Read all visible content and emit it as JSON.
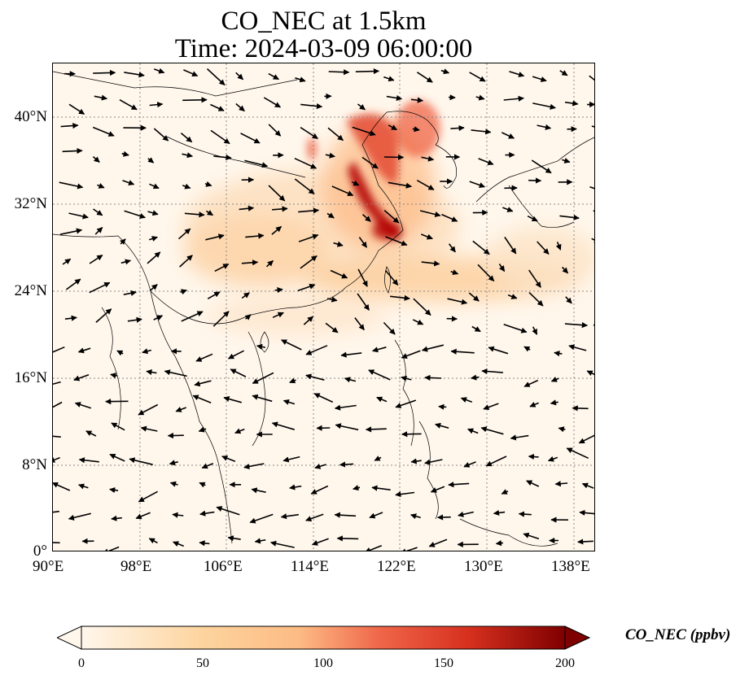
{
  "title": {
    "line1": "CO_NEC at 1.5km",
    "line2": "Time: 2024-03-09 06:00:00"
  },
  "axes": {
    "lon_labels": [
      "90°E",
      "98°E",
      "106°E",
      "114°E",
      "122°E",
      "130°E",
      "138°E"
    ],
    "lat_labels": [
      "0°",
      "8°N",
      "16°N",
      "24°N",
      "32°N",
      "40°N"
    ],
    "lon_range": [
      90,
      140
    ],
    "lat_range": [
      0,
      45
    ],
    "gridlines": true
  },
  "colorbar": {
    "label": "CO_NEC (ppbv)",
    "ticks": [
      "0",
      "50",
      "100",
      "150",
      "200"
    ],
    "range": [
      0,
      200
    ],
    "colormap": "OrRd",
    "extend": "both"
  },
  "colors": {
    "low": "#fff7ec",
    "mid": "#fdbb84",
    "high": "#d7301f",
    "max": "#7f0000"
  }
}
